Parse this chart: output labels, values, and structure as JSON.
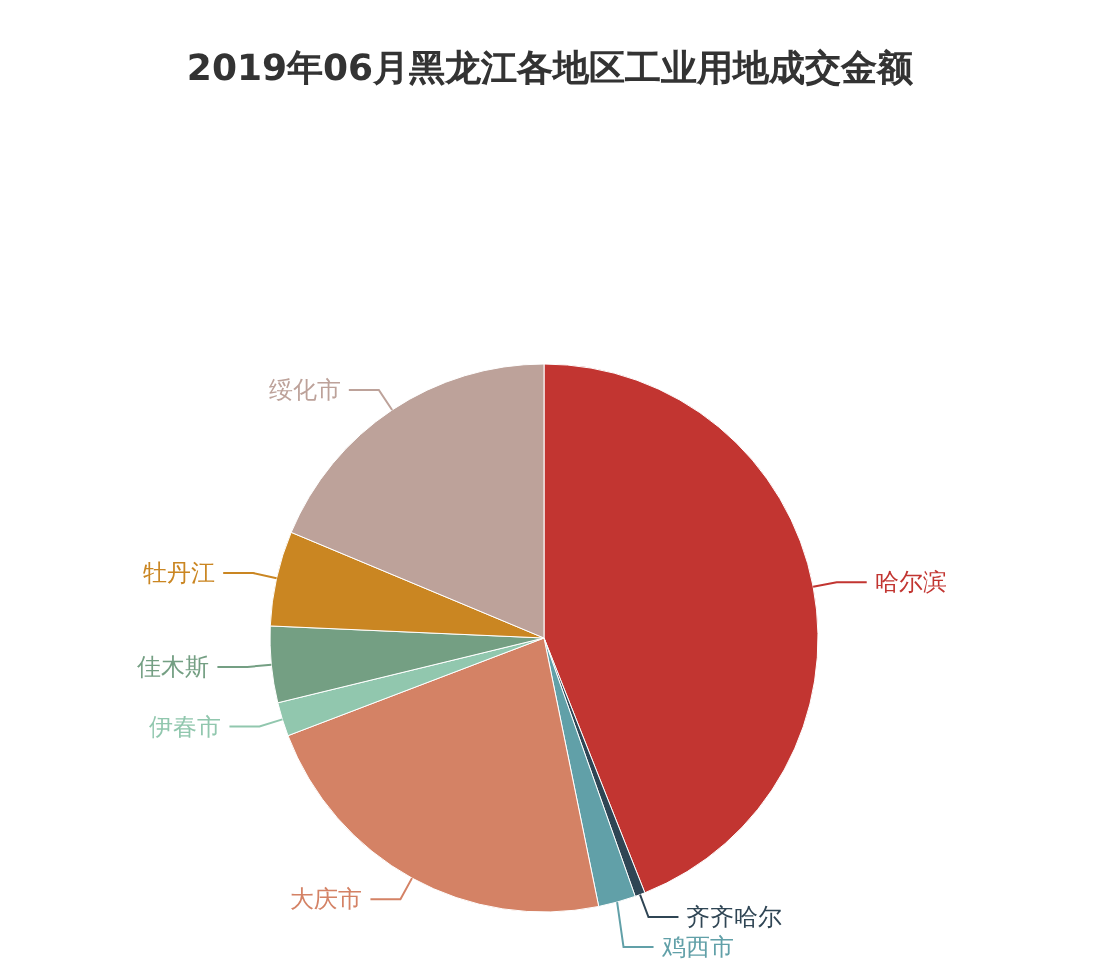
{
  "chart_data": {
    "type": "pie",
    "title": "2019年06月黑龙江各地区工业用地成交金额",
    "categories": [
      "哈尔滨",
      "齐齐哈尔",
      "鸡西市",
      "大庆市",
      "伊春市",
      "佳木斯",
      "牡丹江",
      "绥化市"
    ],
    "values": [
      44.0,
      0.6,
      2.2,
      22.4,
      2.0,
      4.5,
      5.6,
      18.7
    ],
    "colors": [
      "#c23531",
      "#2f4554",
      "#61a0a8",
      "#d48265",
      "#91c7ae",
      "#749f83",
      "#ca8622",
      "#bda29a"
    ]
  }
}
